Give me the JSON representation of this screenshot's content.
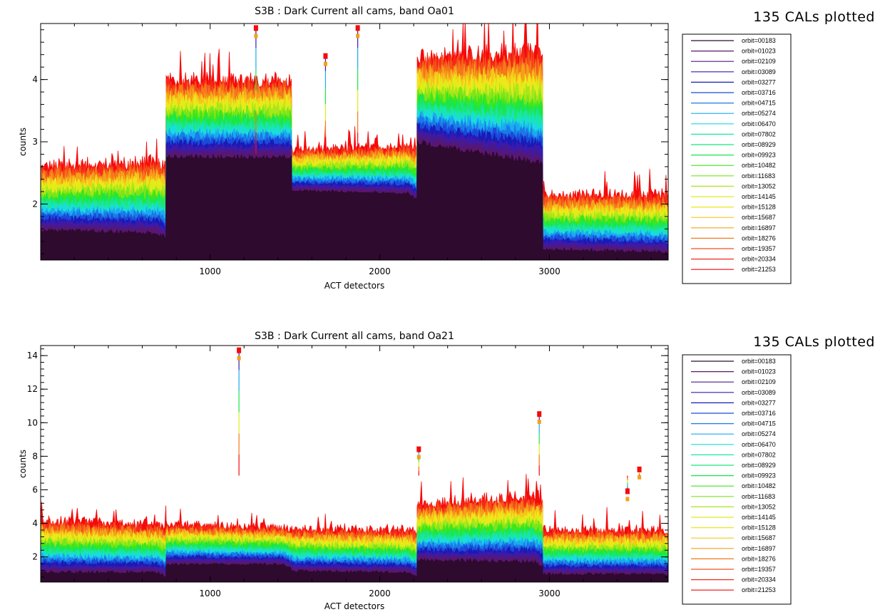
{
  "chart_data": [
    {
      "type": "scatter",
      "title": "S3B : Dark Current all cams, band Oa01",
      "note": "135 CALs plotted",
      "xlabel": "ACT detectors",
      "ylabel": "counts",
      "xlim": [
        1,
        3700
      ],
      "ylim": [
        1.1,
        4.9
      ],
      "x_ticks": [
        1000,
        2000,
        3000
      ],
      "y_ticks": [
        2,
        3,
        4
      ],
      "grid": false,
      "legend_position": "right",
      "segments": [
        {
          "x": [
            1,
            740
          ],
          "first_orbit_level": [
            1.55,
            1.5
          ],
          "last_orbit_level": [
            2.5,
            2.55
          ],
          "dip_end": 0.25
        },
        {
          "x": [
            741,
            1480
          ],
          "first_orbit_level": [
            2.72,
            2.72
          ],
          "last_orbit_level": [
            3.85,
            3.85
          ],
          "dip_end": 0.05
        },
        {
          "x": [
            1481,
            2220
          ],
          "first_orbit_level": [
            2.2,
            2.15
          ],
          "last_orbit_level": [
            2.8,
            2.85
          ],
          "dip_end": 0.35
        },
        {
          "x": [
            2221,
            2960
          ],
          "first_orbit_level": [
            2.95,
            2.6
          ],
          "last_orbit_level": [
            4.2,
            4.25
          ],
          "dip_end": 0.1
        },
        {
          "x": [
            2961,
            3700
          ],
          "first_orbit_level": [
            1.25,
            1.2
          ],
          "last_orbit_level": [
            2.05,
            2.05
          ],
          "dip_end": 0.05
        }
      ],
      "spikes": [
        {
          "x": 1870,
          "y": 4.85
        },
        {
          "x": 1680,
          "y": 4.4
        },
        {
          "x": 1270,
          "y": 4.85
        }
      ]
    },
    {
      "type": "scatter",
      "title": "S3B : Dark Current all cams, band Oa21",
      "note": "135 CALs plotted",
      "xlabel": "ACT detectors",
      "ylabel": "counts",
      "xlim": [
        1,
        3700
      ],
      "ylim": [
        0.5,
        14.6
      ],
      "x_ticks": [
        1000,
        2000,
        3000
      ],
      "y_ticks": [
        2,
        4,
        6,
        8,
        10,
        12,
        14
      ],
      "grid": false,
      "legend_position": "right",
      "segments": [
        {
          "x": [
            1,
            740
          ],
          "first_orbit_level": [
            1.0,
            1.0
          ],
          "last_orbit_level": [
            3.8,
            3.6
          ],
          "dip_end": 0.25
        },
        {
          "x": [
            741,
            1480
          ],
          "first_orbit_level": [
            1.5,
            1.5
          ],
          "last_orbit_level": [
            3.7,
            3.5
          ],
          "dip_end": 0.25
        },
        {
          "x": [
            1481,
            2220
          ],
          "first_orbit_level": [
            1.1,
            1.0
          ],
          "last_orbit_level": [
            3.4,
            3.3
          ],
          "dip_end": 0.2
        },
        {
          "x": [
            2221,
            2960
          ],
          "first_orbit_level": [
            1.7,
            1.6
          ],
          "last_orbit_level": [
            4.8,
            5.2
          ],
          "dip_end": 0.25
        },
        {
          "x": [
            2961,
            3700
          ],
          "first_orbit_level": [
            0.9,
            0.9
          ],
          "last_orbit_level": [
            3.3,
            3.3
          ],
          "dip_end": 0.05
        }
      ],
      "spikes": [
        {
          "x": 1170,
          "y": 14.4
        },
        {
          "x": 2940,
          "y": 10.6
        },
        {
          "x": 2230,
          "y": 8.5
        },
        {
          "x": 3530,
          "y": 7.3
        },
        {
          "x": 3460,
          "y": 6.0
        }
      ]
    }
  ],
  "legend_entries": [
    {
      "label": "orbit=00183",
      "color": "#2e0a2e"
    },
    {
      "label": "orbit=01023",
      "color": "#5a1670"
    },
    {
      "label": "orbit=02109",
      "color": "#4a1a8a"
    },
    {
      "label": "orbit=03089",
      "color": "#3a1ab0"
    },
    {
      "label": "orbit=03277",
      "color": "#1a1ab4"
    },
    {
      "label": "orbit=03716",
      "color": "#1a4adc"
    },
    {
      "label": "orbit=04715",
      "color": "#1a7ae6"
    },
    {
      "label": "orbit=05274",
      "color": "#1aaaf0"
    },
    {
      "label": "orbit=06470",
      "color": "#1adcdc"
    },
    {
      "label": "orbit=07802",
      "color": "#1ae6aa"
    },
    {
      "label": "orbit=08929",
      "color": "#1ae67a"
    },
    {
      "label": "orbit=09923",
      "color": "#1ae64a"
    },
    {
      "label": "orbit=10482",
      "color": "#3ce61a"
    },
    {
      "label": "orbit=11683",
      "color": "#7ae61a"
    },
    {
      "label": "orbit=13052",
      "color": "#aae61a"
    },
    {
      "label": "orbit=14145",
      "color": "#dcee1a"
    },
    {
      "label": "orbit=15128",
      "color": "#f0e61a"
    },
    {
      "label": "orbit=15687",
      "color": "#f5c81a"
    },
    {
      "label": "orbit=16897",
      "color": "#f5a01a"
    },
    {
      "label": "orbit=18276",
      "color": "#f5781a"
    },
    {
      "label": "orbit=19357",
      "color": "#f5501a"
    },
    {
      "label": "orbit=20334",
      "color": "#f5281a"
    },
    {
      "label": "orbit=21253",
      "color": "#f50a0a"
    }
  ]
}
